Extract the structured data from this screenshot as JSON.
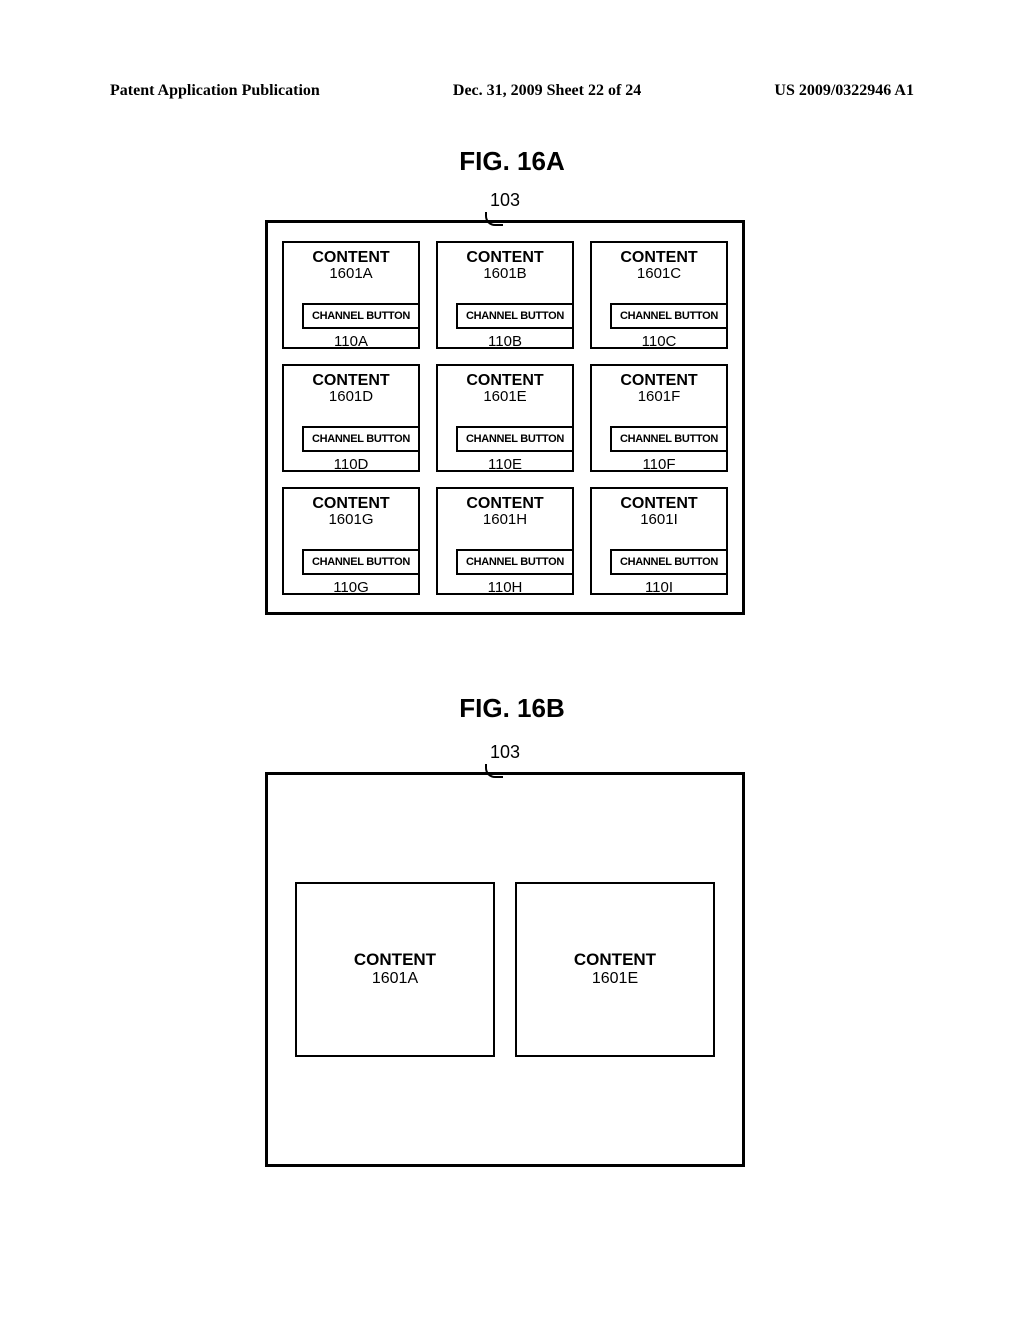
{
  "header": {
    "left": "Patent Application Publication",
    "center": "Dec. 31, 2009  Sheet 22 of 24",
    "right": "US 2009/0322946 A1"
  },
  "figA": {
    "title": "FIG. 16A",
    "ref": "103",
    "cells": [
      {
        "content": "CONTENT",
        "cid": "1601A",
        "btn": "CHANNEL BUTTON",
        "bid": "110A"
      },
      {
        "content": "CONTENT",
        "cid": "1601B",
        "btn": "CHANNEL BUTTON",
        "bid": "110B"
      },
      {
        "content": "CONTENT",
        "cid": "1601C",
        "btn": "CHANNEL BUTTON",
        "bid": "110C"
      },
      {
        "content": "CONTENT",
        "cid": "1601D",
        "btn": "CHANNEL BUTTON",
        "bid": "110D"
      },
      {
        "content": "CONTENT",
        "cid": "1601E",
        "btn": "CHANNEL BUTTON",
        "bid": "110E"
      },
      {
        "content": "CONTENT",
        "cid": "1601F",
        "btn": "CHANNEL BUTTON",
        "bid": "110F"
      },
      {
        "content": "CONTENT",
        "cid": "1601G",
        "btn": "CHANNEL BUTTON",
        "bid": "110G"
      },
      {
        "content": "CONTENT",
        "cid": "1601H",
        "btn": "CHANNEL BUTTON",
        "bid": "110H"
      },
      {
        "content": "CONTENT",
        "cid": "1601I",
        "btn": "CHANNEL BUTTON",
        "bid": "110I"
      }
    ]
  },
  "figB": {
    "title": "FIG. 16B",
    "ref": "103",
    "cells": [
      {
        "content": "CONTENT",
        "cid": "1601A"
      },
      {
        "content": "CONTENT",
        "cid": "1601E"
      }
    ]
  }
}
